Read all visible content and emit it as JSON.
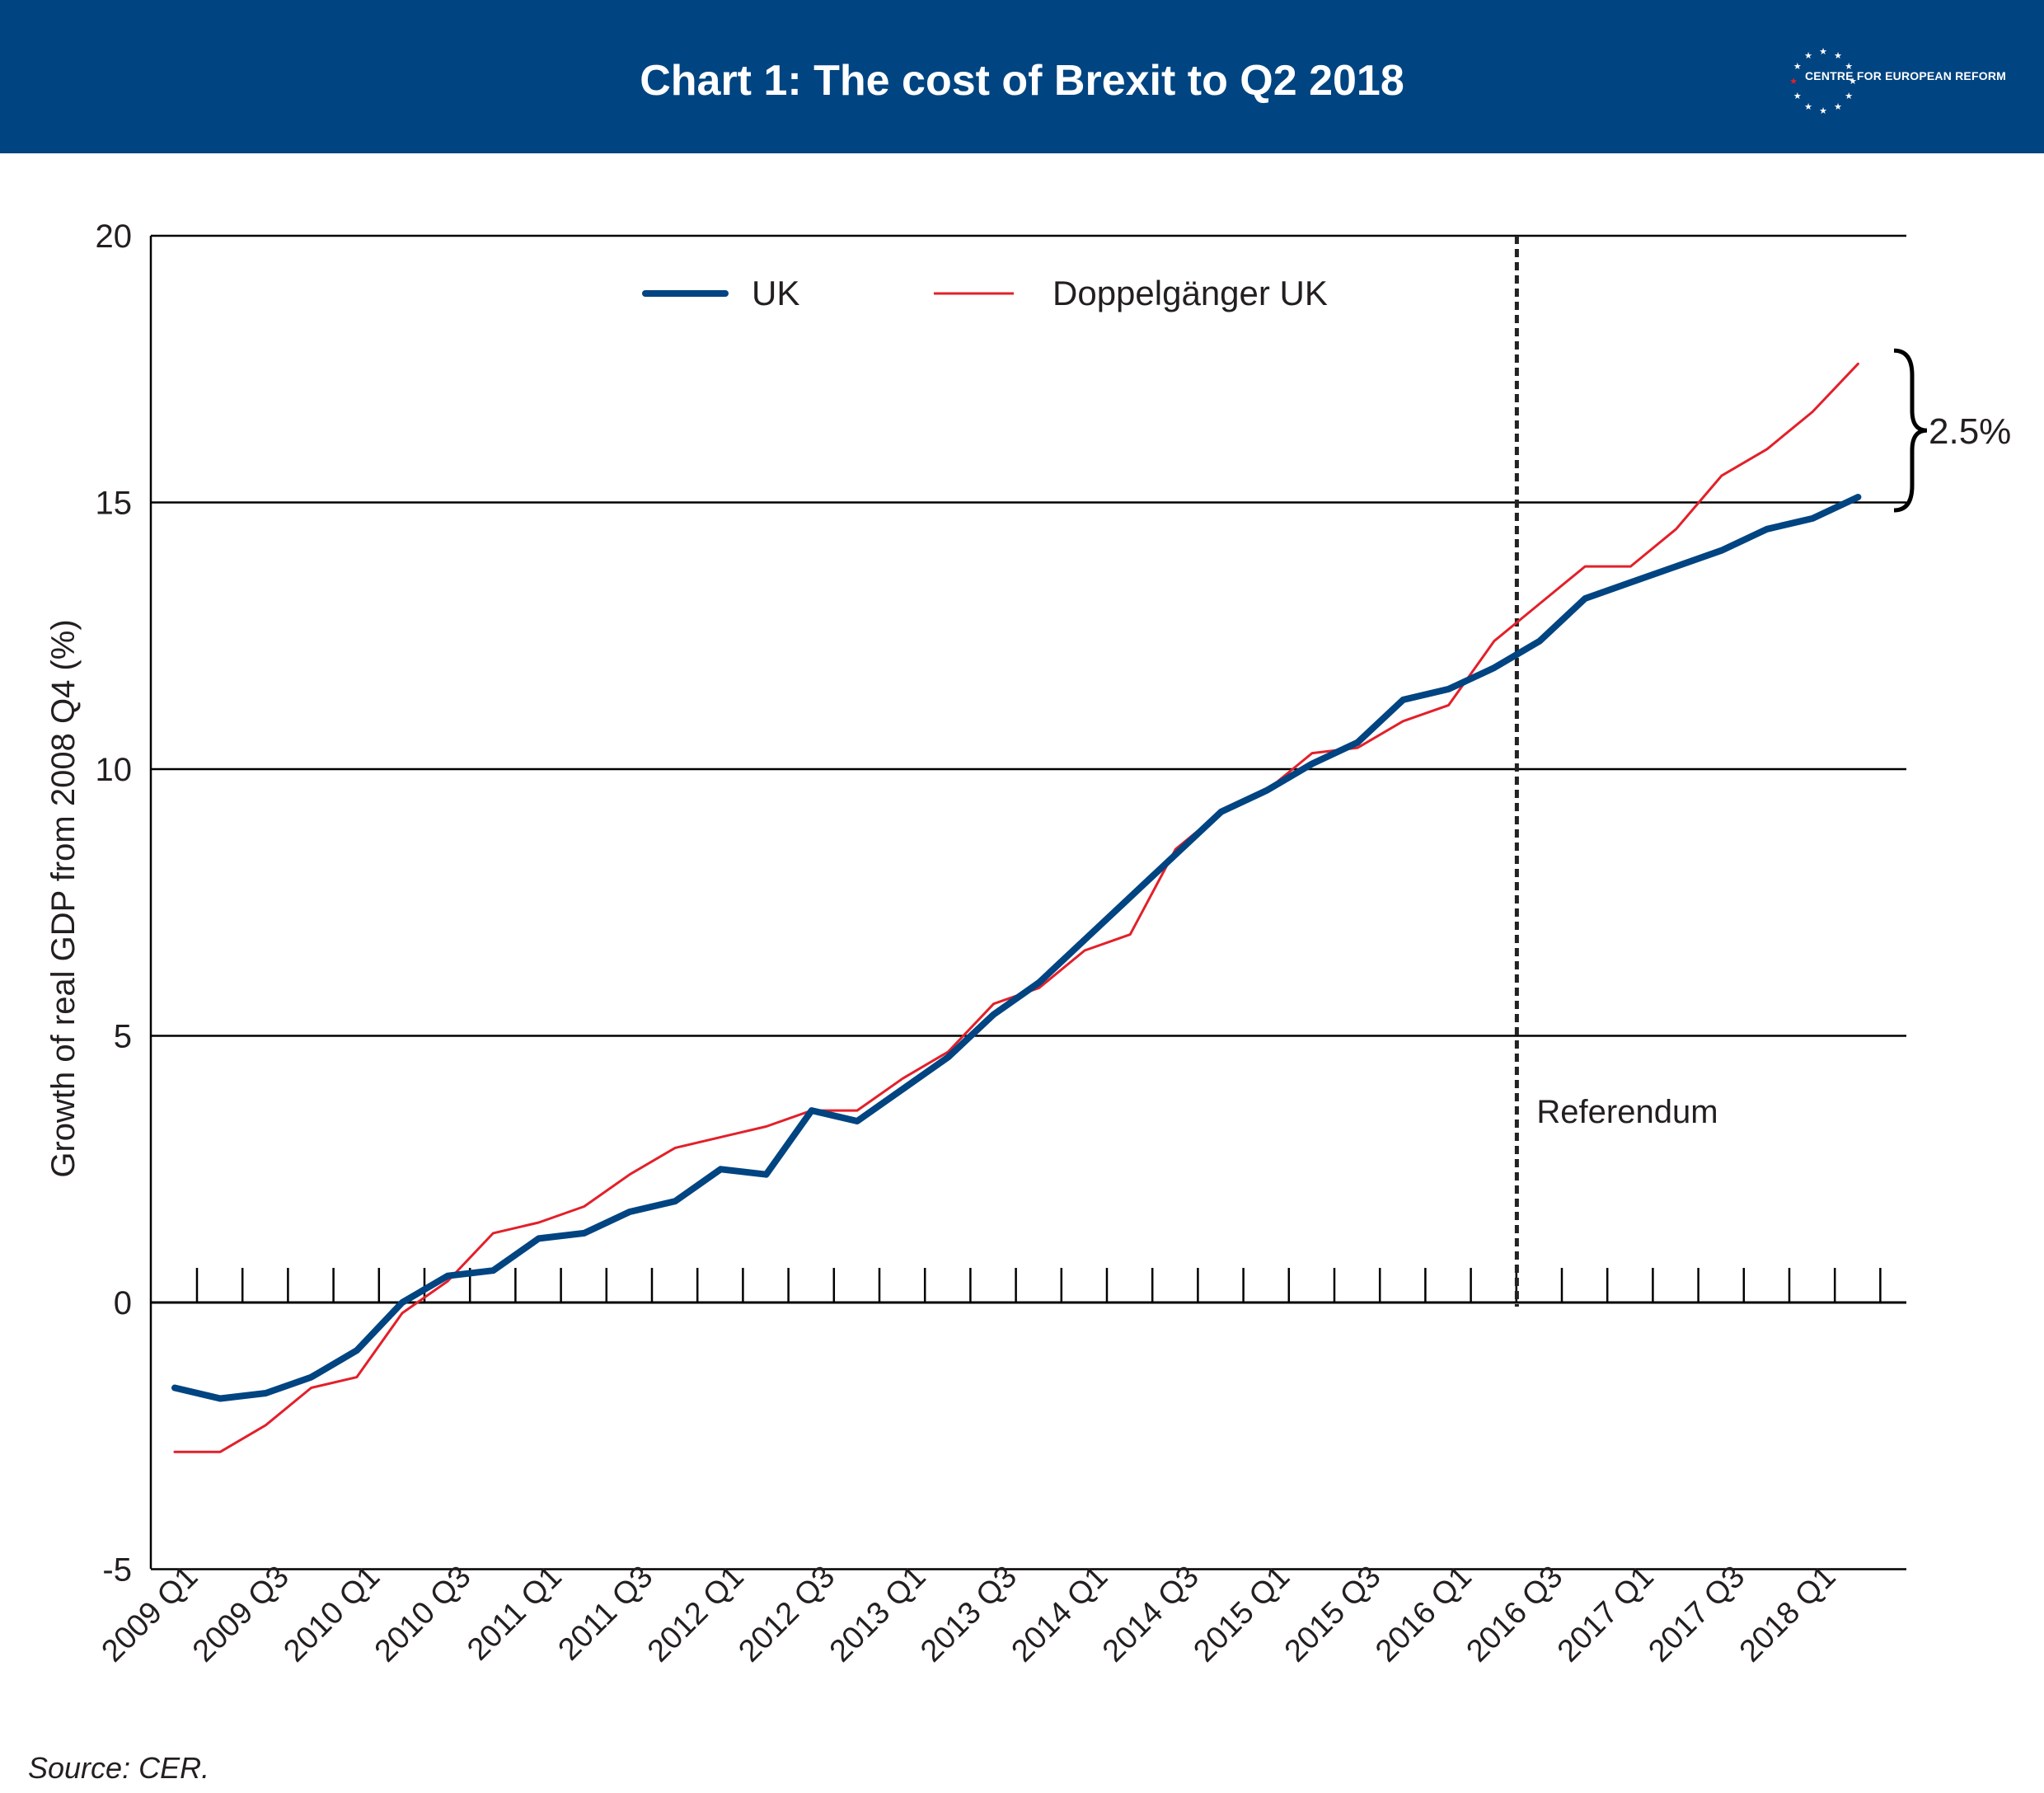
{
  "header": {
    "title": "Chart 1: The cost of Brexit to Q2 2018",
    "background": "#004481",
    "logo_text": "CENTRE FOR EUROPEAN REFORM"
  },
  "source": "Source: CER.",
  "colors": {
    "uk": "#004481",
    "doppelganger": "#e2202a",
    "axis": "#000000",
    "text": "#231f20"
  },
  "chart_data": {
    "type": "line",
    "title": "",
    "xlabel": "",
    "ylabel": "Growth of real GDP from 2008 Q4 (%)",
    "ylim": [
      -5,
      20
    ],
    "yticks": [
      -5,
      0,
      5,
      10,
      15,
      20
    ],
    "grid": "horizontal",
    "legend_position": "top-center",
    "categories": [
      "2009 Q1",
      "2009 Q2",
      "2009 Q3",
      "2009 Q4",
      "2010 Q1",
      "2010 Q2",
      "2010 Q3",
      "2010 Q4",
      "2011 Q1",
      "2011 Q2",
      "2011 Q3",
      "2011 Q4",
      "2012 Q1",
      "2012 Q2",
      "2012 Q3",
      "2012 Q4",
      "2013 Q1",
      "2013 Q2",
      "2013 Q3",
      "2013 Q4",
      "2014 Q1",
      "2014 Q2",
      "2014 Q3",
      "2014 Q4",
      "2015 Q1",
      "2015 Q2",
      "2015 Q3",
      "2015 Q4",
      "2016 Q1",
      "2016 Q2",
      "2016 Q3",
      "2016 Q4",
      "2017 Q1",
      "2017 Q2",
      "2017 Q3",
      "2017 Q4",
      "2018 Q1",
      "2018 Q2"
    ],
    "tick_labels": [
      "2009 Q1",
      "2009 Q3",
      "2010 Q1",
      "2010 Q3",
      "2011 Q1",
      "2011 Q3",
      "2012 Q1",
      "2012 Q3",
      "2013 Q1",
      "2013 Q3",
      "2014 Q1",
      "2014 Q3",
      "2015 Q1",
      "2015 Q3",
      "2016 Q1",
      "2016 Q3",
      "2017 Q1",
      "2017 Q3",
      "2018 Q1"
    ],
    "series": [
      {
        "name": "UK",
        "color": "#004481",
        "values": [
          -1.6,
          -1.8,
          -1.7,
          -1.4,
          -0.9,
          0.0,
          0.5,
          0.6,
          1.2,
          1.3,
          1.7,
          1.9,
          2.5,
          2.4,
          3.6,
          3.4,
          4.0,
          4.6,
          5.4,
          6.0,
          6.8,
          7.6,
          8.4,
          9.2,
          9.6,
          10.1,
          10.5,
          11.3,
          11.5,
          11.9,
          12.4,
          13.2,
          13.5,
          13.8,
          14.1,
          14.5,
          14.7,
          15.1
        ]
      },
      {
        "name": "Doppelgänger UK",
        "color": "#e2202a",
        "values": [
          -2.8,
          -2.8,
          -2.3,
          -1.6,
          -1.4,
          -0.2,
          0.4,
          1.3,
          1.5,
          1.8,
          2.4,
          2.9,
          3.1,
          3.3,
          3.6,
          3.6,
          4.2,
          4.7,
          5.6,
          5.9,
          6.6,
          6.9,
          8.5,
          9.2,
          9.6,
          10.3,
          10.4,
          10.9,
          11.2,
          12.4,
          13.1,
          13.8,
          13.8,
          14.5,
          15.5,
          16.0,
          16.7,
          17.6
        ]
      }
    ],
    "annotations": {
      "referendum_label": "Referendum",
      "referendum_x": 29.5,
      "gap_label": "2.5%"
    }
  }
}
